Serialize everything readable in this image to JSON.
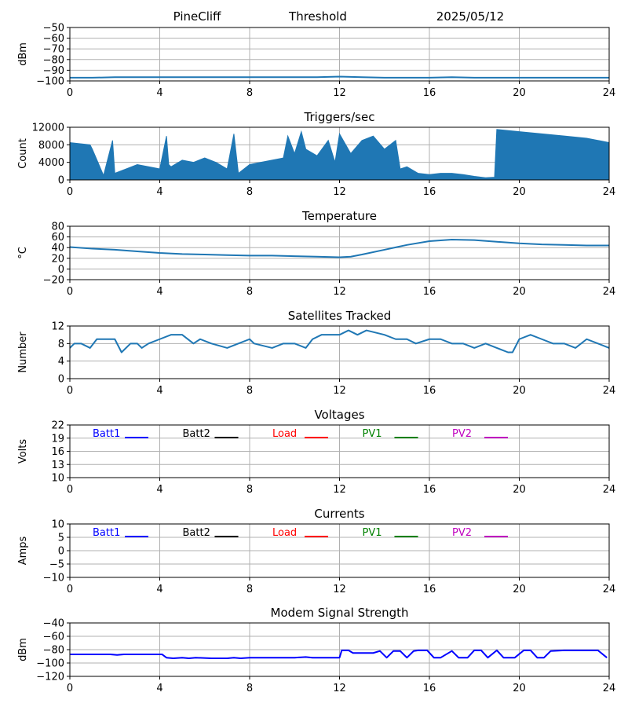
{
  "header": {
    "station": "PineCliff",
    "mode": "Threshold",
    "date": "2025/05/12"
  },
  "colors": {
    "series_blue": "#1f77b4",
    "grid": "#b0b0b0",
    "batt1": "#0000ff",
    "batt2": "#000000",
    "load": "#ff0000",
    "pv1": "#008000",
    "pv2": "#bf00bf"
  },
  "chart_data": [
    {
      "id": "threshold",
      "type": "line",
      "title": "",
      "ylabel": "dBm",
      "xlim": [
        0,
        24
      ],
      "ylim": [
        -100,
        -50
      ],
      "xticks": [
        "0",
        "4",
        "8",
        "12",
        "16",
        "20",
        "24"
      ],
      "yticks": [
        "−50",
        "−60",
        "−70",
        "−80",
        "−90",
        "−100"
      ],
      "series": [
        {
          "color": "#1f77b4",
          "x": [
            0,
            1,
            2,
            3,
            4,
            5,
            6,
            7,
            8,
            9,
            10,
            11,
            12,
            13,
            14,
            15,
            16,
            17,
            18,
            19,
            20,
            21,
            22,
            23,
            24
          ],
          "y": [
            -97,
            -97,
            -96.5,
            -96.5,
            -96.5,
            -96.5,
            -96.5,
            -96.5,
            -96.5,
            -96.5,
            -96.5,
            -96.5,
            -96,
            -96.5,
            -97,
            -97,
            -97,
            -96.5,
            -97,
            -97,
            -97,
            -97,
            -97,
            -97,
            -97
          ]
        }
      ]
    },
    {
      "id": "triggers",
      "type": "area",
      "title": "Triggers/sec",
      "ylabel": "Count",
      "xlim": [
        0,
        24
      ],
      "ylim": [
        0,
        12000
      ],
      "xticks": [
        "0",
        "4",
        "8",
        "12",
        "16",
        "20",
        "24"
      ],
      "yticks": [
        "12000",
        "8000",
        "4000",
        "0"
      ],
      "series": [
        {
          "color": "#1f77b4",
          "x": [
            0,
            0.9,
            1.0,
            1.5,
            1.9,
            2.0,
            2.5,
            3.0,
            3.5,
            4.0,
            4.3,
            4.4,
            4.5,
            5.0,
            5.5,
            6.0,
            6.5,
            7.0,
            7.3,
            7.5,
            8.0,
            8.5,
            9.0,
            9.5,
            9.7,
            10.0,
            10.3,
            10.5,
            11.0,
            11.5,
            11.8,
            12.0,
            12.5,
            13.0,
            13.5,
            14.0,
            14.5,
            14.7,
            15.0,
            15.5,
            16.0,
            16.5,
            17.0,
            17.5,
            18.0,
            18.5,
            18.9,
            19.0,
            20.0,
            21.0,
            22.0,
            23.0,
            24.0
          ],
          "y": [
            8500,
            8000,
            7000,
            1000,
            9000,
            1500,
            2500,
            3500,
            3000,
            2500,
            10000,
            3500,
            3000,
            4500,
            4000,
            5000,
            4000,
            2500,
            10500,
            1500,
            3500,
            4000,
            4500,
            5000,
            10000,
            6000,
            11000,
            7000,
            5500,
            9000,
            4000,
            10500,
            6000,
            9000,
            10000,
            7000,
            9000,
            2500,
            3000,
            1500,
            1200,
            1500,
            1500,
            1200,
            800,
            500,
            600,
            11500,
            11000,
            10500,
            10000,
            9500,
            8500
          ]
        }
      ]
    },
    {
      "id": "temperature",
      "type": "line",
      "title": "Temperature",
      "ylabel": "°C",
      "xlim": [
        0,
        24
      ],
      "ylim": [
        -20,
        80
      ],
      "xticks": [
        "0",
        "4",
        "8",
        "12",
        "16",
        "20",
        "24"
      ],
      "yticks": [
        "80",
        "60",
        "40",
        "20",
        "0",
        "−20"
      ],
      "series": [
        {
          "color": "#1f77b4",
          "x": [
            0,
            1,
            2,
            3,
            4,
            5,
            6,
            7,
            8,
            9,
            10,
            11,
            12,
            12.5,
            13,
            14,
            15,
            16,
            17,
            18,
            19,
            20,
            21,
            22,
            23,
            24
          ],
          "y": [
            41,
            38,
            36,
            33,
            30,
            28,
            27,
            26,
            25,
            25,
            24,
            23,
            22,
            23,
            27,
            36,
            45,
            52,
            55,
            54,
            51,
            48,
            46,
            45,
            44,
            44
          ]
        }
      ]
    },
    {
      "id": "satellites",
      "type": "line",
      "title": "Satellites Tracked",
      "ylabel": "Number",
      "xlim": [
        0,
        24
      ],
      "ylim": [
        0,
        12
      ],
      "xticks": [
        "0",
        "4",
        "8",
        "12",
        "16",
        "20",
        "24"
      ],
      "yticks": [
        "12",
        "8",
        "4",
        "0"
      ],
      "series": [
        {
          "color": "#1f77b4",
          "x": [
            0,
            0.2,
            0.5,
            0.9,
            1.2,
            2.0,
            2.3,
            2.7,
            3.0,
            3.2,
            3.5,
            4.0,
            4.5,
            5.0,
            5.5,
            5.8,
            6.3,
            7.0,
            7.5,
            8.0,
            8.2,
            9.0,
            9.5,
            10.0,
            10.5,
            10.8,
            11.2,
            12.0,
            12.4,
            12.8,
            13.2,
            14.0,
            14.5,
            15.0,
            15.4,
            16.0,
            16.5,
            17.0,
            17.5,
            18.0,
            18.5,
            19.0,
            19.5,
            19.7,
            20.0,
            20.5,
            21.0,
            21.5,
            22.0,
            22.5,
            23.0,
            23.5,
            24.0
          ],
          "y": [
            7,
            8,
            8,
            7,
            9,
            9,
            6,
            8,
            8,
            7,
            8,
            9,
            10,
            10,
            8,
            9,
            8,
            7,
            8,
            9,
            8,
            7,
            8,
            8,
            7,
            9,
            10,
            10,
            11,
            10,
            11,
            10,
            9,
            9,
            8,
            9,
            9,
            8,
            8,
            7,
            8,
            7,
            6,
            6,
            9,
            10,
            9,
            8,
            8,
            7,
            9,
            8,
            7
          ]
        }
      ]
    },
    {
      "id": "voltages",
      "type": "line",
      "title": "Voltages",
      "ylabel": "Volts",
      "xlim": [
        0,
        24
      ],
      "ylim": [
        10,
        22
      ],
      "xticks": [
        "0",
        "4",
        "8",
        "12",
        "16",
        "20",
        "24"
      ],
      "yticks": [
        "22",
        "19",
        "16",
        "13",
        "10"
      ],
      "legend": [
        {
          "label": "Batt1",
          "color": "#0000ff"
        },
        {
          "label": "Batt2",
          "color": "#000000"
        },
        {
          "label": "Load",
          "color": "#ff0000"
        },
        {
          "label": "PV1",
          "color": "#008000"
        },
        {
          "label": "PV2",
          "color": "#bf00bf"
        }
      ],
      "series": []
    },
    {
      "id": "currents",
      "type": "line",
      "title": "Currents",
      "ylabel": "Amps",
      "xlim": [
        0,
        24
      ],
      "ylim": [
        -10,
        10
      ],
      "xticks": [
        "0",
        "4",
        "8",
        "12",
        "16",
        "20",
        "24"
      ],
      "yticks": [
        "10",
        "5",
        "0",
        "−5",
        "−10"
      ],
      "legend": [
        {
          "label": "Batt1",
          "color": "#0000ff"
        },
        {
          "label": "Batt2",
          "color": "#000000"
        },
        {
          "label": "Load",
          "color": "#ff0000"
        },
        {
          "label": "PV1",
          "color": "#008000"
        },
        {
          "label": "PV2",
          "color": "#bf00bf"
        }
      ],
      "series": []
    },
    {
      "id": "modem",
      "type": "line",
      "title": "Modem Signal Strength",
      "ylabel": "dBm",
      "xlim": [
        0,
        24
      ],
      "ylim": [
        -120,
        -40
      ],
      "xticks": [
        "0",
        "4",
        "8",
        "12",
        "16",
        "20",
        "24"
      ],
      "yticks": [
        "−40",
        "−60",
        "−80",
        "−100",
        "−120"
      ],
      "series": [
        {
          "color": "#0000ff",
          "x": [
            0,
            1.8,
            2.1,
            2.4,
            4.1,
            4.3,
            4.6,
            5.0,
            5.3,
            5.6,
            6.3,
            7.0,
            7.3,
            7.6,
            8.0,
            10.0,
            10.5,
            10.8,
            12.0,
            12.1,
            12.4,
            12.6,
            13.0,
            13.5,
            13.8,
            14.1,
            14.4,
            14.7,
            15.0,
            15.3,
            15.5,
            15.9,
            16.2,
            16.5,
            17.0,
            17.3,
            17.7,
            18.0,
            18.3,
            18.6,
            19.0,
            19.3,
            19.8,
            20.2,
            20.5,
            20.8,
            21.1,
            21.4,
            22.0,
            23.5,
            23.9
          ],
          "y": [
            -87,
            -87,
            -88,
            -87,
            -87,
            -92,
            -93,
            -92,
            -93,
            -92,
            -93,
            -93,
            -92,
            -93,
            -92,
            -92,
            -91,
            -92,
            -92,
            -81,
            -81,
            -85,
            -85,
            -85,
            -82,
            -92,
            -82,
            -82,
            -92,
            -82,
            -81,
            -81,
            -92,
            -92,
            -82,
            -92,
            -92,
            -81,
            -81,
            -92,
            -81,
            -92,
            -92,
            -81,
            -81,
            -92,
            -92,
            -82,
            -81,
            -81,
            -92
          ]
        }
      ]
    }
  ]
}
